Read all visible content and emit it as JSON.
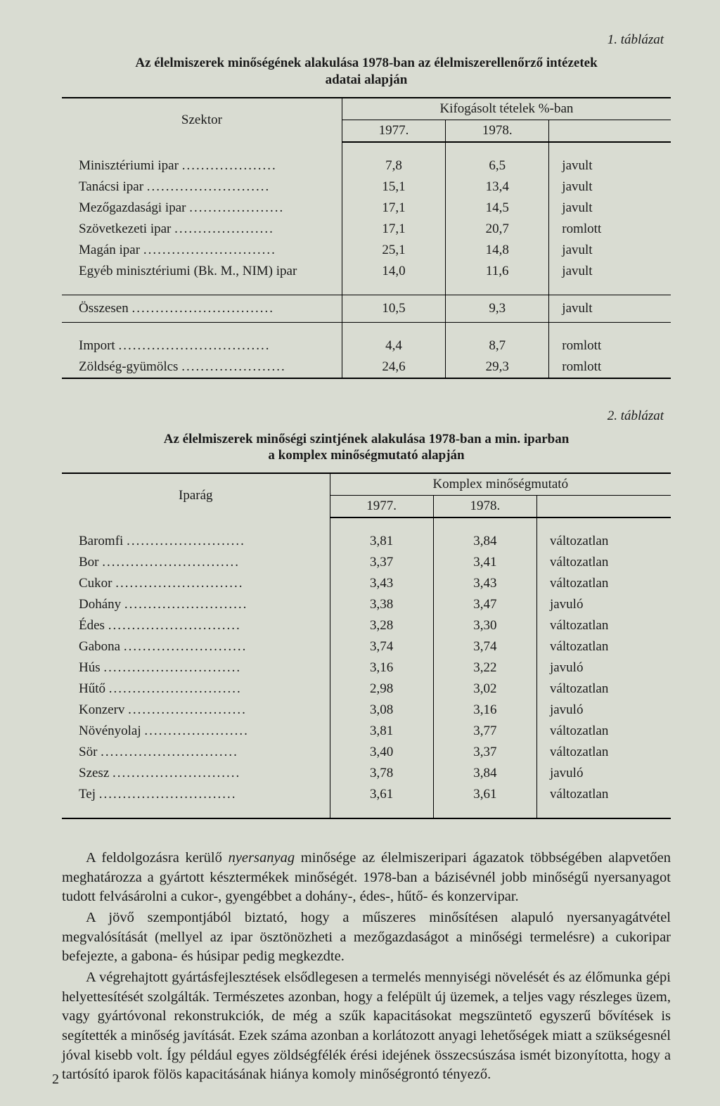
{
  "table1": {
    "label": "1. táblázat",
    "title_l1": "Az élelmiszerek minőségének alakulása 1978-ban az élelmiszerellenőrző intézetek",
    "title_l2": "adatai alapján",
    "col_label": "Szektor",
    "span_head": "Kifogásolt tételek %-ban",
    "years": [
      "1977.",
      "1978."
    ],
    "rows": [
      {
        "name": "Minisztériumi ipar",
        "v77": "7,8",
        "v78": "6,5",
        "trend": "javult"
      },
      {
        "name": "Tanácsi ipar",
        "v77": "15,1",
        "v78": "13,4",
        "trend": "javult"
      },
      {
        "name": "Mezőgazdasági ipar",
        "v77": "17,1",
        "v78": "14,5",
        "trend": "javult"
      },
      {
        "name": "Szövetkezeti ipar",
        "v77": "17,1",
        "v78": "20,7",
        "trend": "romlott"
      },
      {
        "name": "Magán ipar",
        "v77": "25,1",
        "v78": "14,8",
        "trend": "javult"
      },
      {
        "name": "Egyéb minisztériumi (Bk. M., NIM) ipar",
        "v77": "14,0",
        "v78": "11,6",
        "trend": "javult"
      }
    ],
    "total": {
      "name": "Összesen",
      "v77": "10,5",
      "v78": "9,3",
      "trend": "javult"
    },
    "extra": [
      {
        "name": "Import",
        "v77": "4,4",
        "v78": "8,7",
        "trend": "romlott"
      },
      {
        "name": "Zöldség-gyümölcs",
        "v77": "24,6",
        "v78": "29,3",
        "trend": "romlott"
      }
    ],
    "col_widths": {
      "name": "46%",
      "v": "17%",
      "trend": "20%"
    }
  },
  "table2": {
    "label": "2. táblázat",
    "title_l1": "Az élelmiszerek minőségi szintjének alakulása 1978-ban a min. iparban",
    "title_l2": "a komplex minőségmutató alapján",
    "col_label": "Iparág",
    "span_head": "Komplex minőségmutató",
    "years": [
      "1977.",
      "1978."
    ],
    "rows": [
      {
        "name": "Baromfi",
        "v77": "3,81",
        "v78": "3,84",
        "trend": "változatlan"
      },
      {
        "name": "Bor",
        "v77": "3,37",
        "v78": "3,41",
        "trend": "változatlan"
      },
      {
        "name": "Cukor",
        "v77": "3,43",
        "v78": "3,43",
        "trend": "változatlan"
      },
      {
        "name": "Dohány",
        "v77": "3,38",
        "v78": "3,47",
        "trend": "javuló"
      },
      {
        "name": "Édes",
        "v77": "3,28",
        "v78": "3,30",
        "trend": "változatlan"
      },
      {
        "name": "Gabona",
        "v77": "3,74",
        "v78": "3,74",
        "trend": "változatlan"
      },
      {
        "name": "Hús",
        "v77": "3,16",
        "v78": "3,22",
        "trend": "javuló"
      },
      {
        "name": "Hűtő",
        "v77": "2,98",
        "v78": "3,02",
        "trend": "változatlan"
      },
      {
        "name": "Konzerv",
        "v77": "3,08",
        "v78": "3,16",
        "trend": "javuló"
      },
      {
        "name": "Növényolaj",
        "v77": "3,81",
        "v78": "3,77",
        "trend": "változatlan"
      },
      {
        "name": "Sör",
        "v77": "3,40",
        "v78": "3,37",
        "trend": "változatlan"
      },
      {
        "name": "Szesz",
        "v77": "3,78",
        "v78": "3,84",
        "trend": "javuló"
      },
      {
        "name": "Tej",
        "v77": "3,61",
        "v78": "3,61",
        "trend": "változatlan"
      }
    ],
    "col_widths": {
      "name": "44%",
      "v": "17%",
      "trend": "22%"
    }
  },
  "paragraphs": {
    "p1_a": "A feldolgozásra kerülő ",
    "p1_it": "nyersanyag",
    "p1_b": " minősége az élelmiszeripari ágazatok többségében alapvetően meghatározza a gyártott késztermékek minőségét. 1978-ban a bázisévnél jobb minőségű nyersanyagot tudott felvásárolni a cukor-, gyengébbet a dohány-, édes-, hűtő- és konzervipar.",
    "p2": "A jövő szempontjából biztató, hogy a műszeres minősítésen alapuló nyersanyagátvétel megvalósítását (mellyel az ipar ösztönözheti a mezőgazdaságot a minőségi termelésre) a cukoripar befejezte, a gabona- és húsipar pedig megkezdte.",
    "p3": "A végrehajtott gyártásfejlesztések elsődlegesen a termelés mennyiségi növelését és az élőmunka gépi helyettesítését szolgálták. Természetes azonban, hogy a felépült új üzemek, a teljes vagy részleges üzem, vagy gyártóvonal rekonstrukciók, de még a szűk kapacitásokat megszüntető egyszerű bővítések is segítették a minőség javítását. Ezek száma azonban a korlátozott anyagi lehetőségek miatt a szükségesnél jóval kisebb volt. Így például egyes zöldségfélék érési idejének összecsúszása ismét bizonyította, hogy a tartósító iparok fölös kapacitásának hiánya komoly minőségrontó tényező."
  },
  "page_number": "2"
}
